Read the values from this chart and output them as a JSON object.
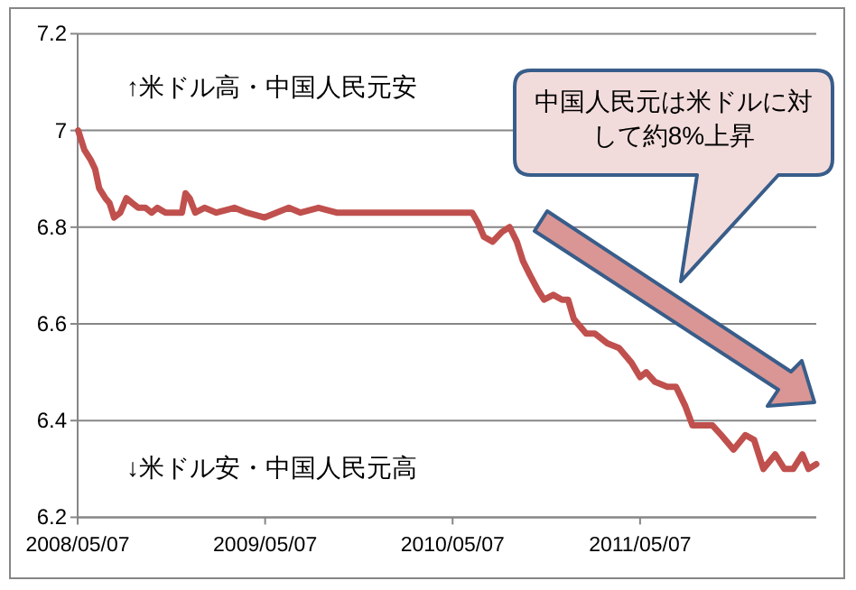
{
  "chart_data": {
    "type": "line",
    "x": [
      "2008-05-08",
      "2008-05-20",
      "2008-06-01",
      "2008-06-10",
      "2008-06-18",
      "2008-06-30",
      "2008-07-08",
      "2008-07-17",
      "2008-07-29",
      "2008-08-10",
      "2008-08-21",
      "2008-09-02",
      "2008-09-16",
      "2008-09-28",
      "2008-10-09",
      "2008-10-25",
      "2008-11-11",
      "2008-11-26",
      "2008-12-03",
      "2008-12-11",
      "2008-12-22",
      "2009-01-09",
      "2009-02-01",
      "2009-03-08",
      "2009-04-01",
      "2009-05-06",
      "2009-05-29",
      "2009-06-22",
      "2009-07-15",
      "2009-08-19",
      "2009-09-23",
      "2010-03-30",
      "2010-06-14",
      "2010-06-25",
      "2010-07-07",
      "2010-07-24",
      "2010-08-11",
      "2010-08-26",
      "2010-09-09",
      "2010-09-21",
      "2010-10-05",
      "2010-10-20",
      "2010-11-01",
      "2010-11-19",
      "2010-12-06",
      "2010-12-18",
      "2010-12-29",
      "2011-01-22",
      "2011-02-08",
      "2011-03-04",
      "2011-03-27",
      "2011-04-20",
      "2011-05-07",
      "2011-05-19",
      "2011-06-05",
      "2011-06-29",
      "2011-07-16",
      "2011-08-03",
      "2011-08-17",
      "2011-09-07",
      "2011-09-25",
      "2011-10-12",
      "2011-11-05",
      "2011-11-28",
      "2011-12-15",
      "2012-01-02",
      "2012-01-25",
      "2012-02-12",
      "2012-02-29",
      "2012-03-18",
      "2012-03-30",
      "2012-04-14"
    ],
    "series": [
      {
        "color": "#c0504d",
        "values": [
          7.0,
          6.96,
          6.94,
          6.92,
          6.88,
          6.86,
          6.85,
          6.82,
          6.83,
          6.86,
          6.85,
          6.84,
          6.84,
          6.83,
          6.84,
          6.83,
          6.83,
          6.83,
          6.87,
          6.86,
          6.83,
          6.84,
          6.83,
          6.84,
          6.83,
          6.82,
          6.83,
          6.84,
          6.83,
          6.84,
          6.83,
          6.83,
          6.83,
          6.81,
          6.78,
          6.77,
          6.79,
          6.8,
          6.77,
          6.73,
          6.7,
          6.67,
          6.65,
          6.66,
          6.65,
          6.65,
          6.61,
          6.58,
          6.58,
          6.56,
          6.55,
          6.52,
          6.49,
          6.5,
          6.48,
          6.47,
          6.47,
          6.43,
          6.39,
          6.39,
          6.39,
          6.37,
          6.34,
          6.37,
          6.36,
          6.3,
          6.33,
          6.3,
          6.3,
          6.33,
          6.3,
          6.31
        ]
      }
    ],
    "ylim": [
      6.2,
      7.2
    ],
    "yticks": [
      6.2,
      6.4,
      6.6,
      6.8,
      7,
      7.2
    ],
    "xlim": [
      "2008-05-07",
      "2012-04-14"
    ],
    "xticks": [
      {
        "value": "2008-05-07",
        "label": "2008/05/07"
      },
      {
        "value": "2009-05-07",
        "label": "2009/05/07"
      },
      {
        "value": "2010-05-07",
        "label": "2010/05/07"
      },
      {
        "value": "2011-05-07",
        "label": "2011/05/07"
      }
    ],
    "grid": "y",
    "annotations": [
      "↑米ドル高・中国人民元安",
      "↓米ドル安・中国人民元高",
      "中国人民元は米ドルに対して約8%上昇"
    ]
  }
}
